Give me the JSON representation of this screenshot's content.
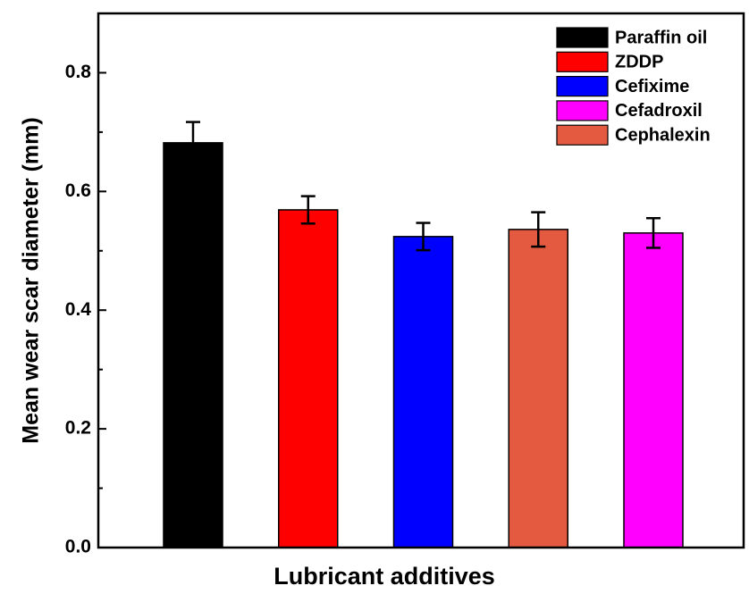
{
  "chart_data": {
    "type": "bar",
    "ylabel": "Mean wear scar diameter (mm)",
    "xlabel": "Lubricant additives",
    "categories": [
      null,
      null,
      null,
      null,
      null
    ],
    "series": [
      {
        "name": "Paraffin oil",
        "color": "#000000",
        "values": [
          0.682,
          null,
          null,
          null,
          null
        ],
        "errors": [
          0.035,
          null,
          null,
          null,
          null
        ]
      },
      {
        "name": "ZDDP",
        "color": "#ff0000",
        "values": [
          null,
          0.569,
          null,
          null,
          null
        ],
        "errors": [
          null,
          0.023,
          null,
          null,
          null
        ]
      },
      {
        "name": "Cefixime",
        "color": "#0000ff",
        "values": [
          null,
          null,
          0.524,
          null,
          null
        ],
        "errors": [
          null,
          null,
          0.023,
          null,
          null
        ]
      },
      {
        "name": "Cefadroxil",
        "color": "#ff00ff",
        "values": [
          null,
          null,
          null,
          null,
          0.53
        ],
        "errors": [
          null,
          null,
          null,
          null,
          0.025
        ]
      },
      {
        "name": "Cephalexin",
        "color": "#e35a41",
        "values": [
          null,
          null,
          null,
          0.536,
          null
        ],
        "errors": [
          null,
          null,
          null,
          0.029,
          null
        ]
      }
    ],
    "ylim": [
      0,
      0.9
    ],
    "yticks": [
      {
        "value": 0,
        "label": "0.0"
      },
      0.2,
      0.4,
      0.6,
      0.8
    ],
    "minor_yticks": [
      0.1,
      0.3,
      0.5,
      0.7
    ],
    "legend": "upper right",
    "grid": false
  }
}
